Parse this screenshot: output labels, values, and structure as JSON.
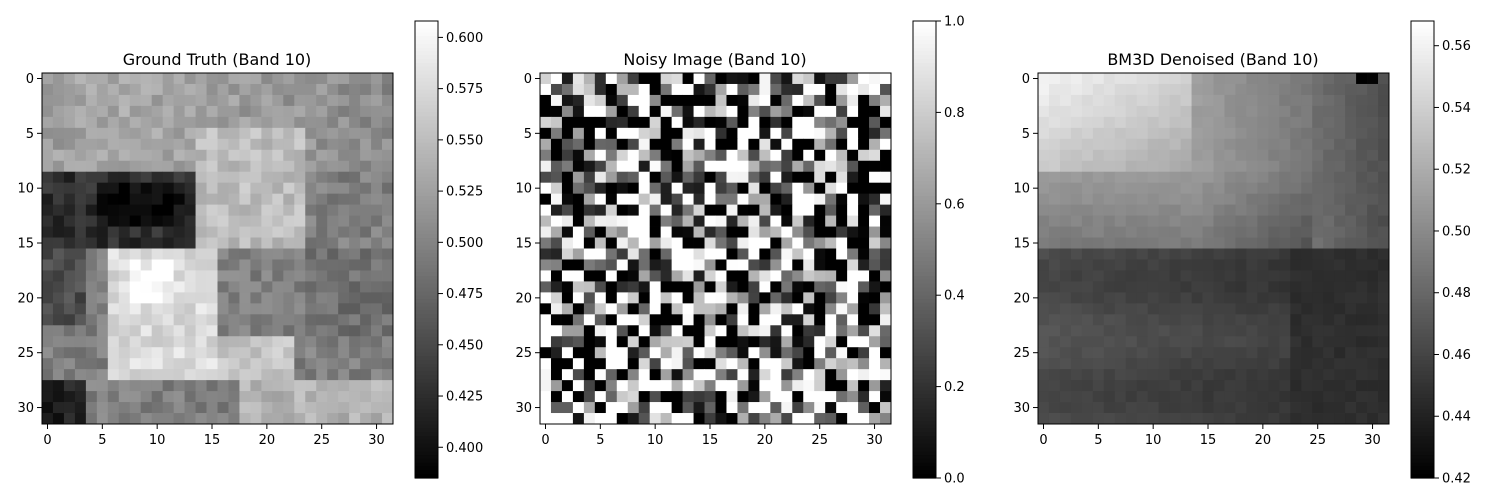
{
  "chart_data": [
    {
      "type": "heatmap",
      "title": "Ground Truth (Band 10)",
      "colormap": "gray",
      "grid": false,
      "size": 32,
      "x_ticks": [
        0,
        5,
        10,
        15,
        20,
        25,
        30
      ],
      "y_ticks": [
        0,
        5,
        10,
        15,
        20,
        25,
        30
      ],
      "colorbar": {
        "min": 0.385,
        "max": 0.608,
        "ticks": [
          0.4,
          0.425,
          0.45,
          0.475,
          0.5,
          0.525,
          0.55,
          0.575,
          0.6
        ],
        "tick_labels": [
          "0.400",
          "0.425",
          "0.450",
          "0.475",
          "0.500",
          "0.525",
          "0.550",
          "0.575",
          "0.600"
        ]
      }
    },
    {
      "type": "heatmap",
      "title": "Noisy Image (Band 10)",
      "colormap": "gray",
      "grid": false,
      "size": 32,
      "x_ticks": [
        0,
        5,
        10,
        15,
        20,
        25,
        30
      ],
      "y_ticks": [
        0,
        5,
        10,
        15,
        20,
        25,
        30
      ],
      "colorbar": {
        "min": 0.0,
        "max": 1.0,
        "ticks": [
          0.0,
          0.2,
          0.4,
          0.6,
          0.8,
          1.0
        ],
        "tick_labels": [
          "0.0",
          "0.2",
          "0.4",
          "0.6",
          "0.8",
          "1.0"
        ]
      }
    },
    {
      "type": "heatmap",
      "title": "BM3D Denoised (Band 10)",
      "colormap": "gray",
      "grid": false,
      "size": 32,
      "x_ticks": [
        0,
        5,
        10,
        15,
        20,
        25,
        30
      ],
      "y_ticks": [
        0,
        5,
        10,
        15,
        20,
        25,
        30
      ],
      "colorbar": {
        "min": 0.42,
        "max": 0.568,
        "ticks": [
          0.42,
          0.44,
          0.46,
          0.48,
          0.5,
          0.52,
          0.54,
          0.56
        ],
        "tick_labels": [
          "0.42",
          "0.44",
          "0.46",
          "0.48",
          "0.50",
          "0.52",
          "0.54",
          "0.56"
        ]
      }
    }
  ]
}
